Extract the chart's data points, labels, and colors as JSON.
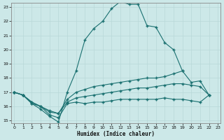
{
  "xlabel": "Humidex (Indice chaleur)",
  "background_color": "#cce8e8",
  "line_color": "#1a7070",
  "grid_color": "#b8d8d8",
  "x_min": 0,
  "x_max": 23,
  "y_min": 15,
  "y_max": 23,
  "series": [
    {
      "x": [
        0,
        1,
        2,
        3,
        4,
        5,
        6,
        7,
        8,
        9,
        10,
        11,
        12,
        13,
        14,
        15,
        16,
        17,
        18,
        19
      ],
      "y": [
        17.0,
        16.8,
        16.2,
        15.8,
        15.3,
        14.9,
        17.0,
        18.5,
        20.7,
        21.5,
        22.0,
        22.9,
        23.4,
        23.2,
        23.2,
        21.7,
        21.6,
        20.5,
        20.0,
        18.5
      ]
    },
    {
      "x": [
        0,
        1,
        2,
        3,
        4,
        5,
        6,
        7,
        8,
        9,
        10,
        11,
        12,
        13,
        14,
        15,
        16,
        17,
        18,
        19,
        20,
        21,
        22
      ],
      "y": [
        17.0,
        16.8,
        16.3,
        16.0,
        15.6,
        15.5,
        16.5,
        17.0,
        17.2,
        17.4,
        17.5,
        17.6,
        17.7,
        17.8,
        17.9,
        18.0,
        18.0,
        18.1,
        18.3,
        18.5,
        17.7,
        17.8,
        16.8
      ]
    },
    {
      "x": [
        0,
        1,
        2,
        3,
        4,
        5,
        6,
        7,
        8,
        9,
        10,
        11,
        12,
        13,
        14,
        15,
        16,
        17,
        18,
        19,
        20,
        21,
        22
      ],
      "y": [
        17.0,
        16.8,
        16.3,
        16.0,
        15.7,
        15.5,
        16.3,
        16.6,
        16.7,
        16.8,
        16.9,
        17.0,
        17.1,
        17.2,
        17.3,
        17.3,
        17.4,
        17.5,
        17.6,
        17.6,
        17.5,
        17.4,
        16.8
      ]
    },
    {
      "x": [
        0,
        1,
        2,
        3,
        4,
        5,
        6,
        7,
        8,
        9,
        10,
        11,
        12,
        13,
        14,
        15,
        16,
        17,
        18,
        19,
        20,
        21,
        22
      ],
      "y": [
        17.0,
        16.8,
        16.2,
        16.0,
        15.4,
        15.2,
        16.2,
        16.3,
        16.2,
        16.3,
        16.3,
        16.4,
        16.5,
        16.5,
        16.5,
        16.5,
        16.5,
        16.6,
        16.5,
        16.5,
        16.4,
        16.3,
        16.8
      ]
    }
  ]
}
